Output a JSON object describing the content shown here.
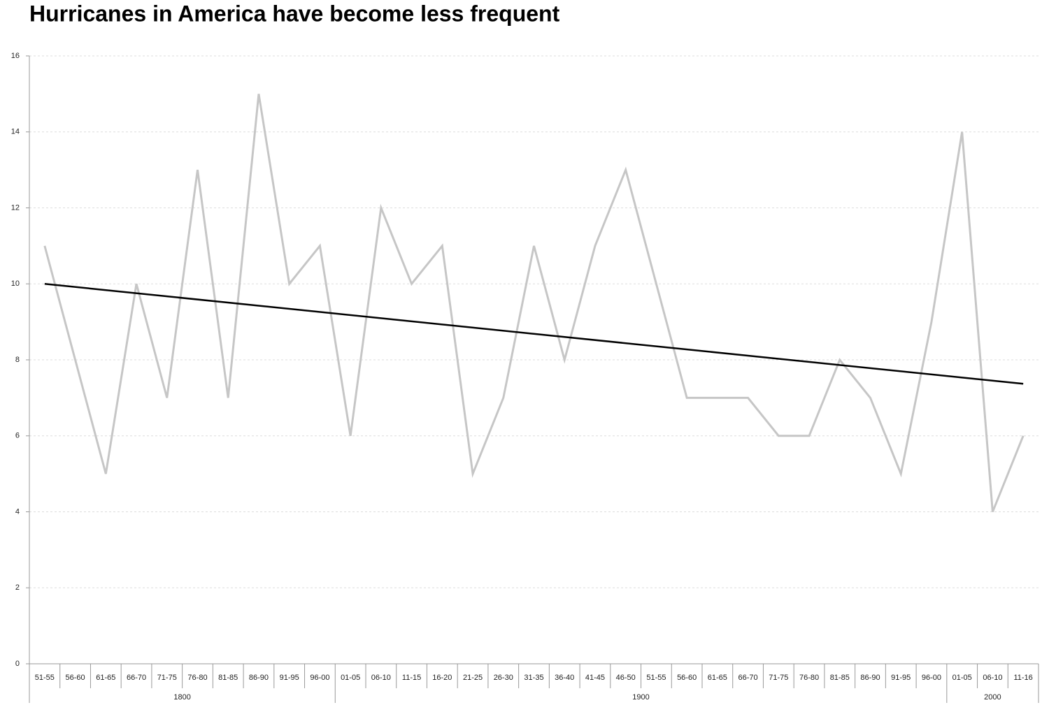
{
  "chart_data": {
    "type": "line",
    "title": "Hurricanes in America have become less frequent",
    "categories": [
      "51-55",
      "56-60",
      "61-65",
      "66-70",
      "71-75",
      "76-80",
      "81-85",
      "86-90",
      "91-95",
      "96-00",
      "01-05",
      "06-10",
      "11-15",
      "16-20",
      "21-25",
      "26-30",
      "31-35",
      "36-40",
      "41-45",
      "46-50",
      "51-55",
      "56-60",
      "61-65",
      "66-70",
      "71-75",
      "76-80",
      "81-85",
      "86-90",
      "91-95",
      "96-00",
      "01-05",
      "06-10",
      "11-16"
    ],
    "groups": [
      {
        "label": "1800",
        "size": 10
      },
      {
        "label": "1900",
        "size": 20
      },
      {
        "label": "2000",
        "size": 3
      }
    ],
    "series": [
      {
        "color": "#c6c6c6",
        "values": [
          11,
          8,
          5,
          10,
          7,
          13,
          7,
          15,
          10,
          11,
          6,
          12,
          10,
          11,
          5,
          7,
          11,
          8,
          11,
          13,
          10,
          7,
          7,
          7,
          6,
          6,
          8,
          7,
          5,
          9,
          14,
          4,
          6
        ]
      }
    ],
    "trend": {
      "color": "#000000",
      "values": [
        10.0,
        7.37
      ]
    },
    "ylim": [
      0,
      16
    ],
    "yticks": [
      0,
      2,
      4,
      6,
      8,
      10,
      12,
      14,
      16
    ],
    "grid": true
  }
}
